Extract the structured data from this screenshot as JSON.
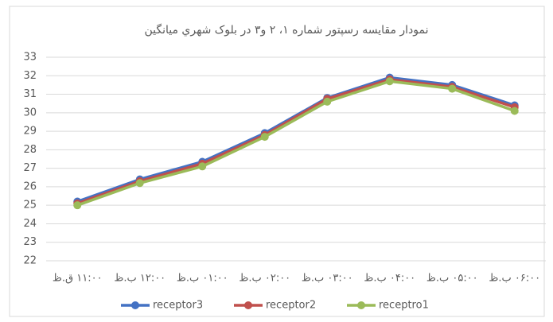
{
  "chart_data": {
    "type": "line",
    "title": "نمودار مقایسه رسپتور شماره ۱، ۲ و۳ در بلوک شهري ميانگين",
    "categories": [
      "۱۱:۰۰ ق.ظ",
      "۱۲:۰۰ ب.ظ",
      "۰۱:۰۰ ب.ظ",
      "۰۲:۰۰ ب.ظ",
      "۰۳:۰۰ ب.ظ",
      "۰۴:۰۰ ب.ظ",
      "۰۵:۰۰ ب.ظ",
      "۰۶:۰۰ ب.ظ"
    ],
    "series": [
      {
        "name": "receptor3",
        "color": "#4472c4",
        "values": [
          25.2,
          26.4,
          27.35,
          28.9,
          30.8,
          31.9,
          31.5,
          30.4
        ]
      },
      {
        "name": "receptor2",
        "color": "#c0504d",
        "values": [
          25.1,
          26.3,
          27.25,
          28.8,
          30.75,
          31.8,
          31.4,
          30.3
        ]
      },
      {
        "name": "receptro1",
        "color": "#9bbb59",
        "values": [
          25.0,
          26.2,
          27.1,
          28.7,
          30.6,
          31.7,
          31.3,
          30.1
        ]
      }
    ],
    "ylim": [
      22,
      33
    ],
    "yticks": [
      22,
      23,
      24,
      25,
      26,
      27,
      28,
      29,
      30,
      31,
      32,
      33
    ],
    "grid": true,
    "legend": "bottom"
  }
}
